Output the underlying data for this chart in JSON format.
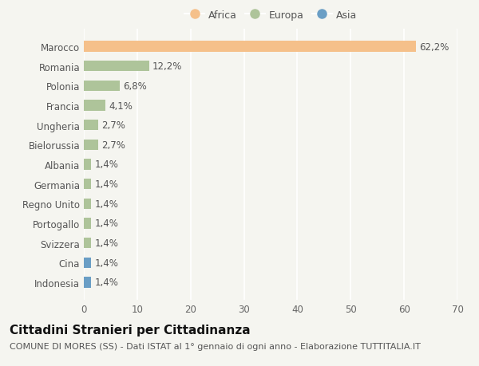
{
  "categories": [
    "Indonesia",
    "Cina",
    "Svizzera",
    "Portogallo",
    "Regno Unito",
    "Germania",
    "Albania",
    "Bielorussia",
    "Ungheria",
    "Francia",
    "Polonia",
    "Romania",
    "Marocco"
  ],
  "values": [
    1.4,
    1.4,
    1.4,
    1.4,
    1.4,
    1.4,
    1.4,
    2.7,
    2.7,
    4.1,
    6.8,
    12.2,
    62.2
  ],
  "colors": [
    "#6a9ec5",
    "#6a9ec5",
    "#aec49a",
    "#aec49a",
    "#aec49a",
    "#aec49a",
    "#aec49a",
    "#aec49a",
    "#aec49a",
    "#aec49a",
    "#aec49a",
    "#aec49a",
    "#f5c08a"
  ],
  "labels": [
    "1,4%",
    "1,4%",
    "1,4%",
    "1,4%",
    "1,4%",
    "1,4%",
    "1,4%",
    "2,7%",
    "2,7%",
    "4,1%",
    "6,8%",
    "12,2%",
    "62,2%"
  ],
  "legend": [
    {
      "label": "Africa",
      "color": "#f5c08a"
    },
    {
      "label": "Europa",
      "color": "#aec49a"
    },
    {
      "label": "Asia",
      "color": "#6a9ec5"
    }
  ],
  "xlim": [
    0,
    70
  ],
  "xticks": [
    0,
    10,
    20,
    30,
    40,
    50,
    60,
    70
  ],
  "title": "Cittadini Stranieri per Cittadinanza",
  "subtitle": "COMUNE DI MORES (SS) - Dati ISTAT al 1° gennaio di ogni anno - Elaborazione TUTTITALIA.IT",
  "bg_color": "#f5f5f0",
  "bar_height": 0.55,
  "label_fontsize": 8.5,
  "tick_fontsize": 8.5,
  "title_fontsize": 11,
  "subtitle_fontsize": 8
}
